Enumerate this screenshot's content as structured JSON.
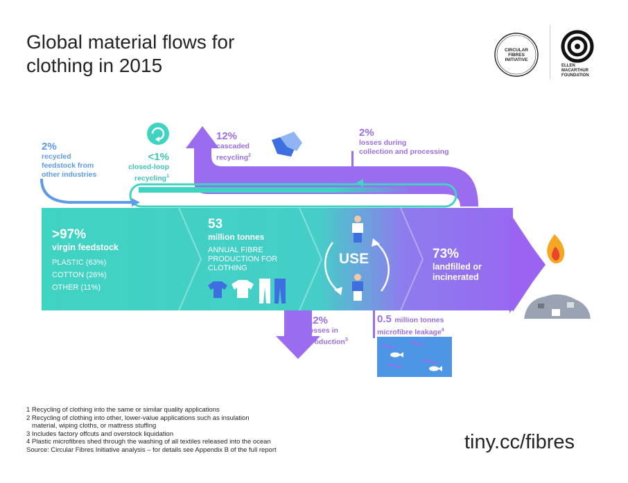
{
  "title": {
    "line1": "Global material flows for",
    "line2": "clothing in 2015"
  },
  "logos": {
    "cfi": [
      "CIRCULAR",
      "FIBRES",
      "INITIATIVE"
    ],
    "emf": [
      "ELLEN",
      "MACARTHUR",
      "FOUNDATION"
    ]
  },
  "flows": {
    "recycled_feedstock": {
      "pct": "2%",
      "line1": "recycled",
      "line2": "feedstock from",
      "line3": "other industries"
    },
    "closed_loop": {
      "pct": "<1%",
      "line1": "closed-loop",
      "line2": "recycling",
      "sup": "1"
    },
    "cascaded": {
      "pct": "12%",
      "line1": "cascaded",
      "line2": "recycling",
      "sup": "2"
    },
    "collection_losses": {
      "pct": "2%",
      "line1": "losses during",
      "line2": "collection and processing"
    },
    "virgin": {
      "pct": ">97%",
      "label": "virgin feedstock",
      "items": [
        "PLASTIC (63%)",
        "COTTON (26%)",
        "OTHER (11%)"
      ]
    },
    "production": {
      "amount": "53",
      "unit": "million tonnes",
      "line1": "ANNUAL FIBRE",
      "line2": "PRODUCTION FOR",
      "line3": "CLOTHING"
    },
    "use": {
      "label": "USE"
    },
    "landfill": {
      "pct": "73%",
      "line1": "landfilled or",
      "line2": "incinerated"
    },
    "production_losses": {
      "pct": "12%",
      "line1": "losses in",
      "line2": "production",
      "sup": "3"
    },
    "microfibre": {
      "amount": "0.5",
      "unit": "million tonnes",
      "line2": "microfibre leakage",
      "sup": "4"
    }
  },
  "footnotes": [
    "1 Recycling of clothing into the same or similar quality applications",
    "2 Recycling of clothing into other, lower-value applications such as insulation",
    "   material, wiping cloths, or mattress stuffing",
    "3 Includes factory offcuts and overstock liquidation",
    "4 Plastic microfibres shed through the washing of all textiles released into the ocean",
    "Source: Circular Fibres Initiative analysis – for details see Appendix B of the full report"
  ],
  "url": "tiny.cc/fibres",
  "colors": {
    "teal": "#3fd0bf",
    "purple": "#9b6cf0",
    "blue": "#5b9bea",
    "ocean": "#4d96e6"
  }
}
